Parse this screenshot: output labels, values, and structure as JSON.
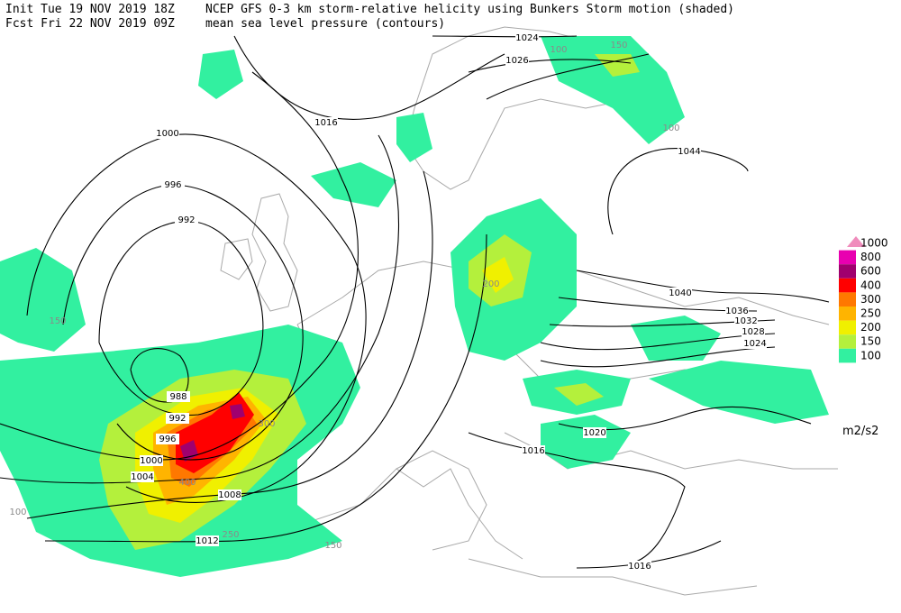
{
  "header": {
    "init": "Init  Tue 19 NOV 2019 18Z",
    "forecast": "Fcst Fri 22 NOV 2019 09Z",
    "title": "NCEP GFS 0-3 km storm-relative helicity using Bunkers Storm motion (shaded)",
    "subtitle": "mean sea level pressure (contours)"
  },
  "legend": {
    "levels": [
      {
        "label": "1000",
        "color": "#f08cbc"
      },
      {
        "label": "800",
        "color": "#e800b0"
      },
      {
        "label": "600",
        "color": "#a0006e"
      },
      {
        "label": "400",
        "color": "#ff0000"
      },
      {
        "label": "300",
        "color": "#ff7800"
      },
      {
        "label": "250",
        "color": "#ffb400"
      },
      {
        "label": "200",
        "color": "#f0f000"
      },
      {
        "label": "150",
        "color": "#b4f03c"
      },
      {
        "label": "100",
        "color": "#32f0a0"
      }
    ],
    "units": "m2/s2"
  },
  "pressure_labels": [
    "1000",
    "996",
    "992",
    "1016",
    "1024",
    "1026",
    "1044",
    "1040",
    "1036",
    "1032",
    "1028",
    "1024",
    "988",
    "992",
    "996",
    "1000",
    "1004",
    "1008",
    "1012",
    "1020",
    "1016",
    "1016"
  ],
  "helicity_labels": [
    "150",
    "100",
    "100",
    "200",
    "150",
    "300",
    "400",
    "250",
    "150",
    "100"
  ]
}
